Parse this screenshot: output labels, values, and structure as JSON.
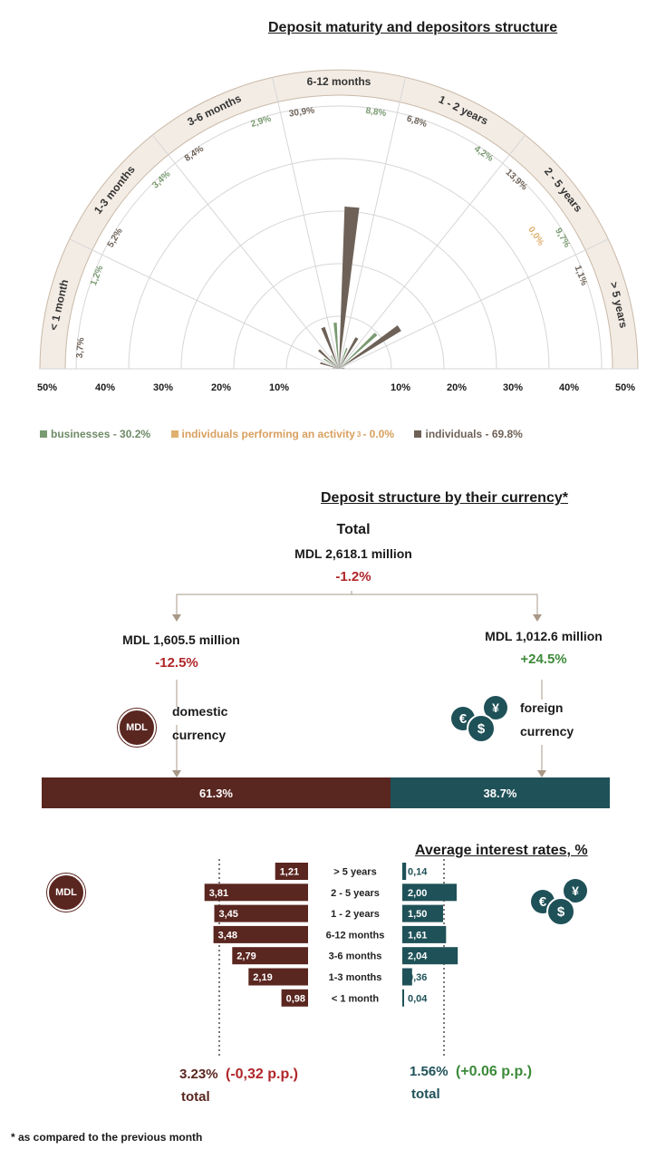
{
  "colors": {
    "businesses": "#7a9a72",
    "individuals_activity": "#e0b070",
    "individuals": "#6e6258",
    "mdl": "#5a2620",
    "foreign": "#1f5158",
    "negative": "#b0262a",
    "positive": "#3d8a3a",
    "grid": "#d6d6d6",
    "ring": "#f3ece4",
    "ring_border": "#c9b9a8"
  },
  "chart_data": [
    {
      "type": "polar-bar",
      "title": "Deposit maturity and depositors structure",
      "radial_ticks_left": [
        "50%",
        "40%",
        "30%",
        "20%",
        "10%"
      ],
      "radial_ticks_right": [
        "10%",
        "20%",
        "30%",
        "40%",
        "50%"
      ],
      "rmax": 50,
      "categories": [
        "< 1 month",
        "1-3 months",
        "3-6 months",
        "6-12 months",
        "1 - 2 years",
        "2 - 5 years",
        "> 5 years"
      ],
      "series": [
        {
          "name": "businesses - 30.2%",
          "values": [
            1.2,
            3.4,
            2.9,
            8.8,
            4.2,
            9.7,
            0.0
          ],
          "labels": [
            "1,2%",
            "3,4%",
            "2,9%",
            "8,8%",
            "4,2%",
            "9,7%",
            ""
          ]
        },
        {
          "name": "individuals performing an activity",
          "values": [
            0,
            0,
            0,
            0,
            0,
            0.0,
            0
          ],
          "labels": [
            "",
            "",
            "",
            "",
            "",
            "0,0%",
            ""
          ]
        },
        {
          "name": "individuals - 69.8%",
          "values": [
            3.7,
            5.2,
            8.4,
            30.9,
            6.8,
            13.9,
            1.1
          ],
          "labels": [
            "3,7%",
            "5,2%",
            "8,4%",
            "30,9%",
            "6,8%",
            "13,9%",
            "1,1%"
          ]
        }
      ],
      "legend_superscript": "3",
      "legend_activity_value": "- 0.0%"
    },
    {
      "type": "bar",
      "orientation": "horizontal-stacked",
      "title": "Deposit structure by their currency*",
      "total": {
        "label": "Total",
        "amount": "MDL 2,618.1 million",
        "change": "-1.2%"
      },
      "domestic": {
        "amount": "MDL 1,605.5 million",
        "change": "-12.5%",
        "label_line1": "domestic",
        "label_line2": "currency",
        "share": 61.3,
        "share_label": "61.3%",
        "icon_text": "MDL"
      },
      "foreign": {
        "amount": "MDL 1,012.6 million",
        "change": "+24.5%",
        "label_line1": "foreign",
        "label_line2": "currency",
        "share": 38.7,
        "share_label": "38.7%",
        "icon_symbols": [
          "€",
          "¥",
          "$"
        ]
      }
    },
    {
      "type": "bar",
      "orientation": "horizontal-butterfly",
      "title": "Average interest rates, %",
      "categories": [
        "> 5 years",
        "2 - 5 years",
        "1 - 2 years",
        "6-12 months",
        "3-6 months",
        "1-3 months",
        "< 1 month"
      ],
      "series": [
        {
          "name": "MDL",
          "values": [
            1.21,
            3.81,
            3.45,
            3.48,
            2.79,
            2.19,
            0.98
          ],
          "labels": [
            "1,21",
            "3,81",
            "3,45",
            "3,48",
            "2,79",
            "2,19",
            "0,98"
          ]
        },
        {
          "name": "foreign",
          "values": [
            0.14,
            2.0,
            1.5,
            1.61,
            2.04,
            0.36,
            0.04
          ],
          "labels": [
            "0,14",
            "2,00",
            "1,50",
            "1,61",
            "2,04",
            "0,36",
            "0,04"
          ]
        }
      ],
      "mdl_total": {
        "value": "3.23%",
        "change": "(-0,32 p.p.)",
        "label": "total"
      },
      "foreign_total": {
        "value": "1.56%",
        "change": "(+0.06 p.p.)",
        "label": "total"
      }
    }
  ],
  "footnote": "* as compared to the previous month"
}
